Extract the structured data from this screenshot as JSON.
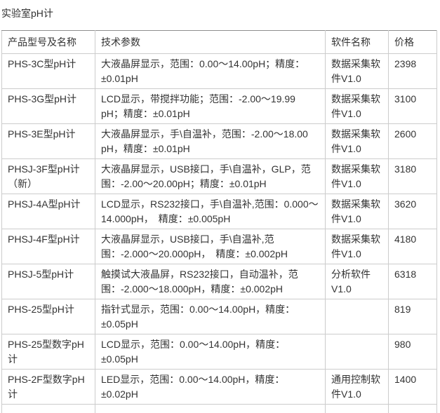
{
  "page": {
    "title": "实验室pH计"
  },
  "colors": {
    "background": "#ffffff",
    "text": "#333333",
    "cell_border": "#cccccc",
    "table_top_border": "#8e8e8e"
  },
  "table": {
    "headers": [
      "产品型号及名称",
      "技术参数",
      "软件名称",
      "价格"
    ],
    "rows": [
      {
        "model": "PHS-3C型pH计",
        "specs": "大液晶屏显示，范围：0.00～14.00pH；精度：±0.01pH",
        "software": "数据采集软件V1.0",
        "price": "2398"
      },
      {
        "model": "PHS-3G型pH计",
        "specs": "LCD显示，带搅拌功能；范围：-2.00～19.99 pH；精度：±0.01pH",
        "software": "数据采集软件V1.0",
        "price": "3100"
      },
      {
        "model": "PHS-3E型pH计",
        "specs": "大液晶屏显示，手\\自温补，范围：-2.00～18.00 pH，精度：±0.01pH",
        "software": "数据采集软件V1.0",
        "price": "2600"
      },
      {
        "model": "PHSJ-3F型pH计（新）",
        "specs": "大液晶屏显示，USB接口，手\\自温补，GLP，范围：-2.00～20.00pH；精度：±0.01pH",
        "software": "数据采集软件V1.0",
        "price": "3180"
      },
      {
        "model": "PHSJ-4A型pH计",
        "specs": "LCD显示，RS232接口，手\\自温补,范围：0.000～14.000pH，　精度：±0.005pH",
        "software": "数据采集软件V1.0",
        "price": "3620"
      },
      {
        "model": "PHSJ-4F型pH计",
        "specs": "大液晶屏显示，USB接口，手\\自温补,范围：-2.000～20.000pH，　精度：±0.002pH",
        "software": "数据采集软件V1.0",
        "price": "4180"
      },
      {
        "model": "PHSJ-5型pH计",
        "specs": "触摸试大液晶屏，RS232接口，自动温补，范围：-2.000～18.000pH，精度：±0.002pH",
        "software": "分析软件V1.0",
        "price": "6318"
      },
      {
        "model": "PHS-25型pH计",
        "specs": "指针式显示，范围：0.00～14.00pH，精度：±0.05pH",
        "software": "",
        "price": "819"
      },
      {
        "model": "PHS-25型数字pH计",
        "specs": "LCD显示，范围：0.00～14.00pH，精度：±0.05pH",
        "software": "",
        "price": "980"
      },
      {
        "model": "PHS-2F型数字pH计",
        "specs": "LED显示，范围：0.00～14.00pH，精度：±0.02pH",
        "software": "通用控制软件V1.0",
        "price": "1400"
      }
    ]
  }
}
